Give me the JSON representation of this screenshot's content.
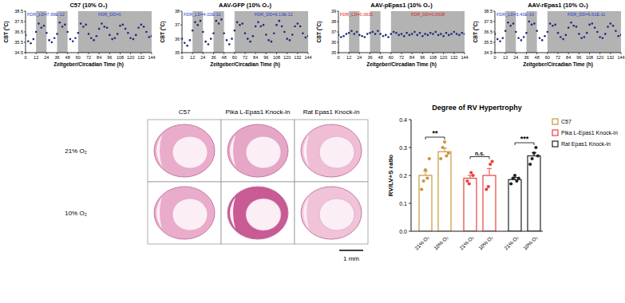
{
  "chart_data": [
    {
      "type": "scatter",
      "title": "C57 (10% O₂)",
      "x_label": "Zeitgeber/Circadian Time (h)",
      "y_label": "CBT (°C)",
      "color": "#1f2a7a",
      "x": [
        0,
        3,
        6,
        9,
        12,
        15,
        18,
        21,
        24,
        27,
        30,
        33,
        36,
        39,
        42,
        45,
        48,
        51,
        54,
        57,
        60,
        63,
        66,
        69,
        72,
        75,
        78,
        81,
        84,
        87,
        90,
        93,
        96,
        99,
        102,
        105,
        108,
        111,
        114,
        117,
        120,
        123,
        126,
        129,
        132,
        135,
        138,
        141,
        144
      ],
      "values": [
        36.2,
        35.6,
        35.4,
        35.8,
        36.5,
        37.3,
        36.9,
        37.1,
        36.4,
        35.7,
        35.5,
        35.9,
        36.3,
        37.4,
        37.0,
        37.2,
        36.5,
        35.8,
        35.6,
        35.9,
        36.4,
        37.3,
        37.0,
        37.2,
        36.3,
        35.9,
        35.7,
        36.1,
        36.8,
        37.3,
        37.0,
        36.9,
        36.2,
        35.8,
        35.9,
        36.3,
        37.1,
        37.2,
        36.8,
        36.4,
        35.9,
        35.8,
        36.2,
        36.9,
        37.2,
        37.0,
        36.5,
        36.0,
        36.1
      ],
      "xlim": [
        0,
        144
      ],
      "xticks": [
        0,
        12,
        24,
        36,
        48,
        60,
        72,
        84,
        96,
        108,
        120,
        132,
        144
      ],
      "ylim": [
        34.5,
        38.5
      ],
      "yticks": [
        34.5,
        35.5,
        36.5,
        37.5,
        38.5
      ],
      "dark_phases": [
        [
          12,
          24
        ],
        [
          36,
          48
        ],
        [
          60,
          144
        ]
      ],
      "annotations": [
        {
          "text": "FDR_LD=7.99E-12",
          "color": "#2a3fd0"
        },
        {
          "text": "FDR_DD=0",
          "color": "#2a3fd0"
        }
      ]
    },
    {
      "type": "scatter",
      "title": "AAV-GFP (10% O₂)",
      "x_label": "Zeitgeber/Circadian Time (h)",
      "y_label": "CBT (°C)",
      "color": "#1f2a7a",
      "x": [
        0,
        3,
        6,
        9,
        12,
        15,
        18,
        21,
        24,
        27,
        30,
        33,
        36,
        39,
        42,
        45,
        48,
        51,
        54,
        57,
        60,
        63,
        66,
        69,
        72,
        75,
        78,
        81,
        84,
        87,
        90,
        93,
        96,
        99,
        102,
        105,
        108,
        111,
        114,
        117,
        120,
        123,
        126,
        129,
        132,
        135,
        138,
        141,
        144
      ],
      "values": [
        36.0,
        35.7,
        35.5,
        35.9,
        36.6,
        37.2,
        37.0,
        37.3,
        36.5,
        35.8,
        35.6,
        36.0,
        36.4,
        37.3,
        37.1,
        37.4,
        36.4,
        35.9,
        35.6,
        36.0,
        36.6,
        37.2,
        37.0,
        37.1,
        36.4,
        36.0,
        35.8,
        36.2,
        36.9,
        37.2,
        36.9,
        37.0,
        36.3,
        35.9,
        35.8,
        36.4,
        37.0,
        37.3,
        36.9,
        36.5,
        36.0,
        35.9,
        36.3,
        36.9,
        37.1,
        36.9,
        36.4,
        36.1,
        36.2
      ],
      "xlim": [
        0,
        144
      ],
      "xticks": [
        0,
        12,
        24,
        36,
        48,
        60,
        72,
        84,
        96,
        108,
        120,
        132,
        144
      ],
      "ylim": [
        35,
        38
      ],
      "yticks": [
        35,
        36,
        37,
        38
      ],
      "dark_phases": [
        [
          12,
          24
        ],
        [
          36,
          48
        ],
        [
          60,
          144
        ]
      ],
      "annotations": [
        {
          "text": "FDR_LD=4.02E-11",
          "color": "#2a3fd0"
        },
        {
          "text": "FDR_DD=6.13E-12",
          "color": "#2a3fd0"
        }
      ]
    },
    {
      "type": "scatter",
      "title": "AAV-pEpas1 (10% O₂)",
      "x_label": "Zeitgeber/Circadian Time (h)",
      "y_label": "CBT (°C)",
      "color": "#1f2a7a",
      "x": [
        0,
        3,
        6,
        9,
        12,
        15,
        18,
        21,
        24,
        27,
        30,
        33,
        36,
        39,
        42,
        45,
        48,
        51,
        54,
        57,
        60,
        63,
        66,
        69,
        72,
        75,
        78,
        81,
        84,
        87,
        90,
        93,
        96,
        99,
        102,
        105,
        108,
        111,
        114,
        117,
        120,
        123,
        126,
        129,
        132,
        135,
        138,
        141,
        144
      ],
      "values": [
        36.7,
        36.5,
        36.6,
        36.8,
        36.9,
        37.1,
        36.8,
        37.0,
        36.7,
        36.6,
        36.5,
        36.8,
        36.9,
        37.0,
        36.8,
        37.1,
        36.8,
        36.6,
        36.7,
        36.5,
        36.8,
        37.0,
        36.9,
        36.7,
        36.8,
        36.6,
        36.9,
        36.7,
        36.8,
        37.0,
        36.7,
        36.9,
        36.6,
        36.8,
        36.7,
        36.9,
        36.8,
        37.0,
        36.7,
        36.8,
        36.6,
        36.9,
        36.7,
        36.8,
        37.0,
        36.8,
        36.7,
        36.9,
        36.8
      ],
      "xlim": [
        0,
        144
      ],
      "xticks": [
        0,
        12,
        24,
        36,
        48,
        60,
        72,
        84,
        96,
        108,
        120,
        132,
        144
      ],
      "ylim": [
        35,
        39
      ],
      "yticks": [
        35,
        36,
        37,
        38,
        39
      ],
      "dark_phases": [
        [
          12,
          24
        ],
        [
          36,
          48
        ],
        [
          60,
          144
        ]
      ],
      "annotations": [
        {
          "text": "FDR_LD=0.0631",
          "color": "#e0201c"
        },
        {
          "text": "FDR_DD=0.0638",
          "color": "#e0201c"
        }
      ]
    },
    {
      "type": "scatter",
      "title": "AAV-rEpas1 (10% O₂)",
      "x_label": "Zeitgeber/Circadian Time (h)",
      "y_label": "CBT (°C)",
      "color": "#1f2a7a",
      "x": [
        0,
        3,
        6,
        9,
        12,
        15,
        18,
        21,
        24,
        27,
        30,
        33,
        36,
        39,
        42,
        45,
        48,
        51,
        54,
        57,
        60,
        63,
        66,
        69,
        72,
        75,
        78,
        81,
        84,
        87,
        90,
        93,
        96,
        99,
        102,
        105,
        108,
        111,
        114,
        117,
        120,
        123,
        126,
        129,
        132,
        135,
        138,
        141,
        144
      ],
      "values": [
        36.3,
        35.8,
        35.6,
        35.9,
        36.6,
        37.4,
        37.1,
        37.3,
        36.5,
        35.9,
        35.7,
        36.0,
        36.4,
        37.5,
        37.2,
        37.3,
        36.6,
        35.9,
        35.7,
        36.1,
        36.5,
        37.3,
        37.1,
        37.2,
        36.4,
        36.0,
        35.8,
        36.2,
        36.9,
        37.4,
        37.1,
        37.0,
        36.3,
        35.9,
        36.0,
        36.4,
        37.2,
        37.3,
        36.9,
        36.5,
        36.0,
        35.9,
        36.3,
        37.0,
        37.3,
        37.1,
        36.6,
        36.1,
        36.2
      ],
      "xlim": [
        0,
        144
      ],
      "xticks": [
        0,
        12,
        24,
        36,
        48,
        60,
        72,
        84,
        96,
        108,
        120,
        132,
        144
      ],
      "ylim": [
        34.5,
        38.5
      ],
      "yticks": [
        34.5,
        35.5,
        36.5,
        37.5,
        38.5
      ],
      "dark_phases": [
        [
          12,
          24
        ],
        [
          36,
          48
        ],
        [
          60,
          144
        ]
      ],
      "annotations": [
        {
          "text": "FDR_LD=3.40E-10",
          "color": "#2a3fd0"
        },
        {
          "text": "FDR_DD=5.61E-11",
          "color": "#2a3fd0"
        }
      ]
    },
    {
      "type": "bar",
      "title": "Degree of RV Hypertrophy",
      "y_label": "RV/LV+S ratio",
      "categories": [
        "21% O₂",
        "10% O₂",
        "21% O₂",
        "10% O₂",
        "21% O₂",
        "10% O₂"
      ],
      "ylim": [
        0,
        0.4
      ],
      "yticks": [
        {
          "value": 0,
          "label": "0.0"
        },
        0.1,
        0.2,
        0.3,
        0.4
      ],
      "legend": "right",
      "series": [
        {
          "name": "C57",
          "color": "#c8963c",
          "values": [
            0.2,
            0.285,
            null,
            null,
            null,
            null
          ],
          "errors": [
            0.015,
            0.013,
            null,
            null,
            null,
            null
          ],
          "points": [
            [
              0.15,
              0.18,
              0.22,
              0.19,
              0.26
            ],
            [
              0.26,
              0.3,
              0.32,
              0.27,
              0.28
            ],
            null,
            null,
            null,
            null
          ],
          "significance": "**"
        },
        {
          "name": "Pika L-Epas1 Knock-in",
          "color": "#e8403c",
          "values": [
            null,
            null,
            0.19,
            0.2,
            null,
            null
          ],
          "errors": [
            null,
            null,
            0.01,
            0.025,
            null,
            null
          ],
          "points": [
            null,
            null,
            [
              0.18,
              0.17,
              0.21,
              0.2
            ],
            [
              0.15,
              0.16,
              0.24,
              0.25
            ],
            null,
            null
          ],
          "significance": "n.s."
        },
        {
          "name": "Rat Epas1 Knock-in",
          "color": "#222222",
          "values": [
            null,
            null,
            null,
            null,
            0.185,
            0.27
          ],
          "errors": [
            null,
            null,
            null,
            null,
            0.008,
            0.012
          ],
          "points": [
            null,
            null,
            null,
            null,
            [
              0.17,
              0.19,
              0.2,
              0.18,
              0.19
            ],
            [
              0.24,
              0.26,
              0.28,
              0.3,
              0.27
            ]
          ],
          "significance": "***"
        }
      ]
    }
  ],
  "histology": {
    "columns": [
      "C57",
      "Pika L-Epas1 Knock-in",
      "Rat Epas1 Knock-in"
    ],
    "rows": [
      "21% O₂",
      "10% O₂"
    ],
    "scale_bar": "1 mm"
  }
}
